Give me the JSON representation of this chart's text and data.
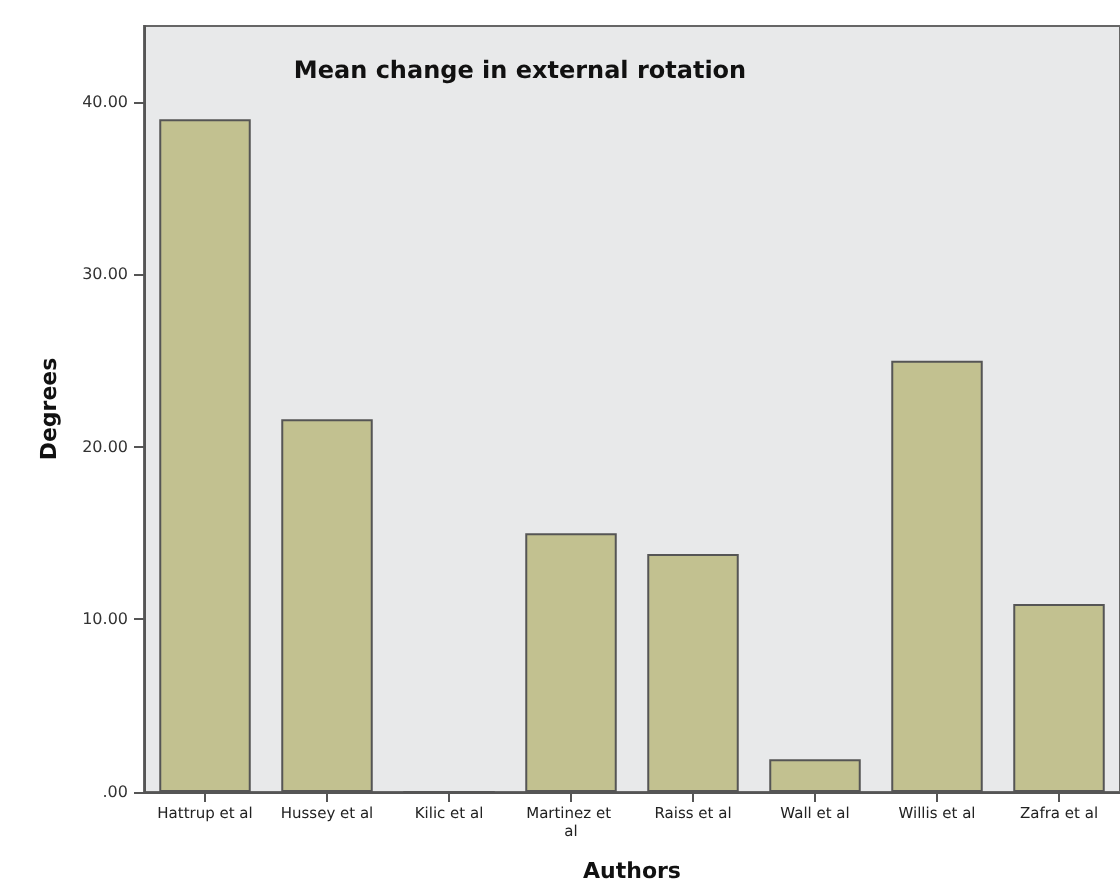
{
  "chart_data": {
    "type": "bar",
    "title": "Mean change in external rotation",
    "xlabel": "Authors",
    "ylabel": "Degrees",
    "categories": [
      "Hattrup et al",
      "Hussey et al",
      "Kilic et al",
      "Martinez et al",
      "Raiss et al",
      "Wall et al",
      "Willis et al",
      "Zafra et al"
    ],
    "values": [
      39.0,
      21.6,
      0,
      15.0,
      13.8,
      1.9,
      25.0,
      10.9
    ],
    "color": "#c2c190",
    "ylim": [
      0,
      44.4
    ],
    "yticks": [
      {
        "value": 0,
        "label": ".00"
      },
      {
        "value": 10,
        "label": "10.00"
      },
      {
        "value": 20,
        "label": "20.00"
      },
      {
        "value": 30,
        "label": "30.00"
      },
      {
        "value": 40,
        "label": "40.00"
      }
    ],
    "grid": false
  }
}
